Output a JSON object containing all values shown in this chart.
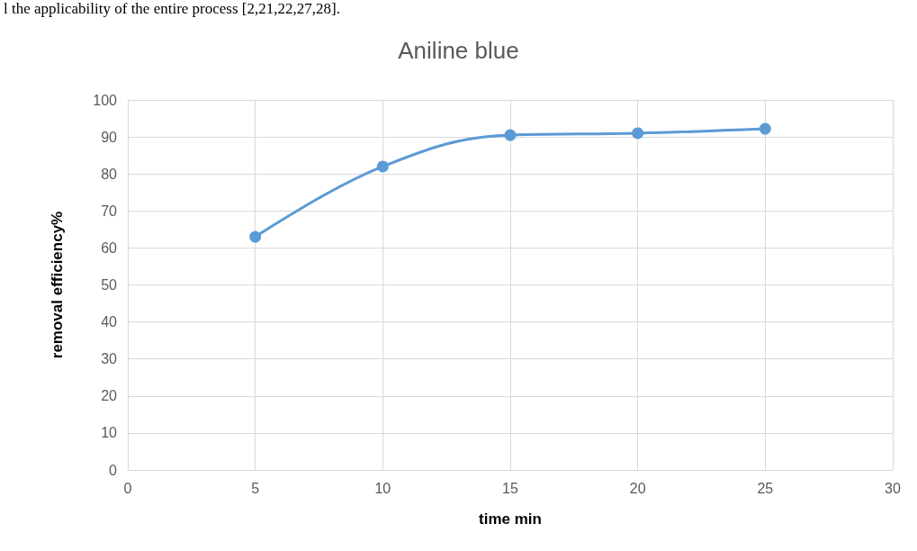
{
  "chart_data": {
    "type": "line",
    "title": "Aniline blue",
    "xlabel": "time min",
    "ylabel": "removal efficiency%",
    "annotations": [
      "l the applicability of the entire process [2,21,22,27,28]."
    ],
    "x": [
      5,
      10,
      15,
      20,
      25
    ],
    "series": [
      {
        "color": "#5b9bd5",
        "values": [
          63,
          82,
          90.5,
          91,
          92.2
        ]
      }
    ],
    "xlim": [
      0,
      30
    ],
    "xticks": [
      0,
      5,
      10,
      15,
      20,
      25,
      30
    ],
    "ylim": [
      0,
      100
    ],
    "yticks": [
      0,
      10,
      20,
      30,
      40,
      50,
      60,
      70,
      80,
      90,
      100
    ],
    "grid": true,
    "marker": "circle",
    "line_style": "solid"
  }
}
